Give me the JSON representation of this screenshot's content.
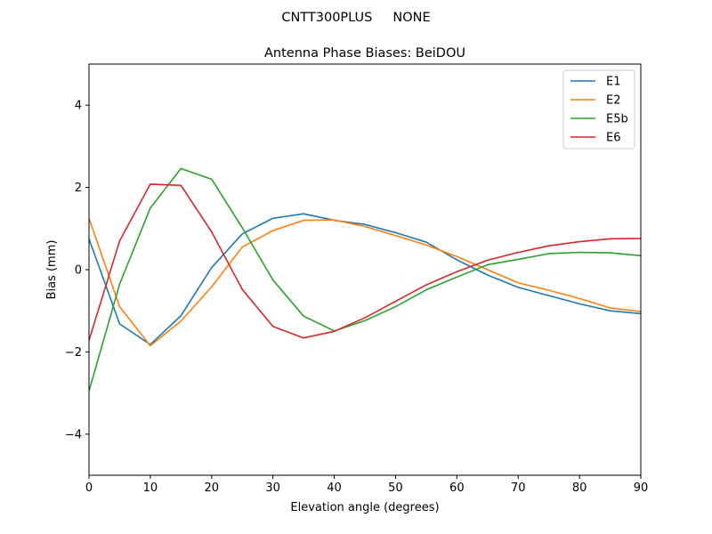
{
  "suptitle": "CNTT300PLUS     NONE",
  "chart_data": {
    "type": "line",
    "title": "Antenna Phase Biases: BeiDOU",
    "xlabel": "Elevation angle (degrees)",
    "ylabel": "Bias (mm)",
    "xlim": [
      0,
      90
    ],
    "ylim": [
      -5,
      5
    ],
    "xticks": [
      0,
      10,
      20,
      30,
      40,
      50,
      60,
      70,
      80,
      90
    ],
    "yticks": [
      -4,
      -2,
      0,
      2,
      4
    ],
    "grid": false,
    "legend_position": "top-right",
    "x": [
      0,
      5,
      10,
      15,
      20,
      25,
      30,
      35,
      40,
      45,
      50,
      55,
      60,
      65,
      70,
      75,
      80,
      85,
      90
    ],
    "series": [
      {
        "name": "E1",
        "color": "#1f77b4",
        "values": [
          0.75,
          -1.32,
          -1.82,
          -1.12,
          0.05,
          0.87,
          1.25,
          1.36,
          1.2,
          1.1,
          0.9,
          0.67,
          0.24,
          -0.13,
          -0.43,
          -0.63,
          -0.83,
          -1.0,
          -1.07
        ]
      },
      {
        "name": "E2",
        "color": "#ff7f0e",
        "values": [
          1.25,
          -0.9,
          -1.85,
          -1.25,
          -0.42,
          0.55,
          0.95,
          1.2,
          1.21,
          1.05,
          0.83,
          0.6,
          0.32,
          0.0,
          -0.32,
          -0.5,
          -0.7,
          -0.93,
          -1.02
        ]
      },
      {
        "name": "E5b",
        "color": "#2ca02c",
        "values": [
          -2.95,
          -0.35,
          1.5,
          2.46,
          2.2,
          1.02,
          -0.25,
          -1.13,
          -1.49,
          -1.24,
          -0.9,
          -0.49,
          -0.18,
          0.12,
          0.25,
          0.39,
          0.42,
          0.41,
          0.34
        ]
      },
      {
        "name": "E6",
        "color": "#d62728",
        "values": [
          -1.72,
          0.7,
          2.08,
          2.05,
          0.92,
          -0.48,
          -1.38,
          -1.66,
          -1.5,
          -1.17,
          -0.77,
          -0.37,
          -0.05,
          0.23,
          0.42,
          0.58,
          0.68,
          0.75,
          0.76
        ]
      }
    ]
  }
}
